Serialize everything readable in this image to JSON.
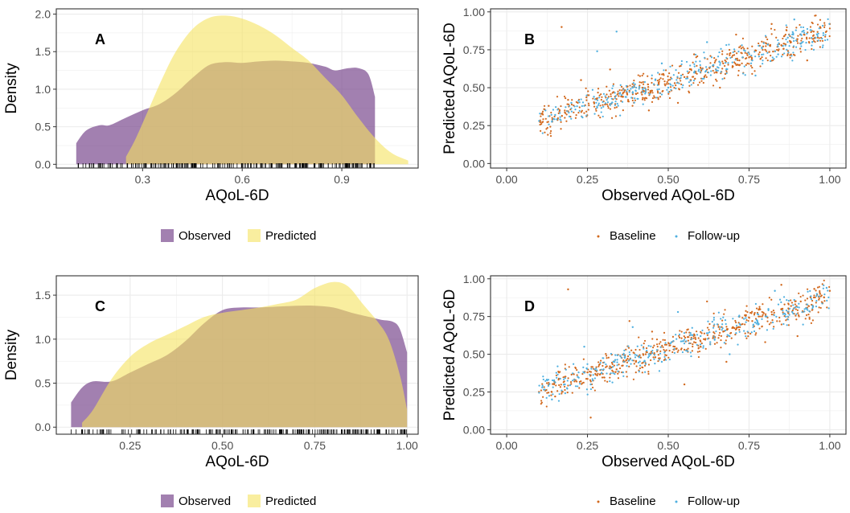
{
  "colors": {
    "observed_fill": "#7b4a8f",
    "predicted_fill": "#f5e35f",
    "baseline_point": "#d2691e",
    "followup_point": "#4fb0e0",
    "grid": "#ebebeb",
    "panel_border": "#333333"
  },
  "chart_data": [
    {
      "panel": "A",
      "type": "area",
      "xlabel": "AQoL-6D",
      "ylabel": "Density",
      "xlim": [
        0.04,
        1.13
      ],
      "ylim": [
        -0.05,
        2.07
      ],
      "xticks": [
        {
          "v": 0.3,
          "label": "0.3"
        },
        {
          "v": 0.6,
          "label": "0.6"
        },
        {
          "v": 0.9,
          "label": "0.9"
        }
      ],
      "yticks": [
        {
          "v": 0.0,
          "label": "0.0"
        },
        {
          "v": 0.5,
          "label": "0.5"
        },
        {
          "v": 1.0,
          "label": "1.0"
        },
        {
          "v": 1.5,
          "label": "1.5"
        },
        {
          "v": 2.0,
          "label": "2.0"
        }
      ],
      "grid": true,
      "legend_position": "bottom",
      "series": [
        {
          "name": "Observed",
          "x": [
            0.1,
            0.13,
            0.17,
            0.2,
            0.25,
            0.3,
            0.35,
            0.4,
            0.45,
            0.5,
            0.55,
            0.6,
            0.65,
            0.7,
            0.75,
            0.8,
            0.85,
            0.88,
            0.92,
            0.95,
            0.98,
            1.0
          ],
          "y": [
            0.28,
            0.45,
            0.52,
            0.52,
            0.62,
            0.72,
            0.8,
            0.95,
            1.15,
            1.32,
            1.36,
            1.35,
            1.37,
            1.38,
            1.37,
            1.35,
            1.3,
            1.25,
            1.28,
            1.28,
            1.2,
            0.9
          ]
        },
        {
          "name": "Predicted",
          "x": [
            0.25,
            0.28,
            0.32,
            0.36,
            0.4,
            0.45,
            0.5,
            0.55,
            0.6,
            0.65,
            0.7,
            0.75,
            0.8,
            0.85,
            0.9,
            0.95,
            1.0,
            1.05,
            1.1
          ],
          "y": [
            0.1,
            0.35,
            0.75,
            1.15,
            1.5,
            1.8,
            1.95,
            1.98,
            1.94,
            1.85,
            1.72,
            1.55,
            1.38,
            1.15,
            0.92,
            0.62,
            0.35,
            0.15,
            0.05
          ]
        }
      ]
    },
    {
      "panel": "B",
      "type": "scatter",
      "xlabel": "Observed AQoL-6D",
      "ylabel": "Predicted AQoL-6D",
      "xlim": [
        -0.05,
        1.05
      ],
      "ylim": [
        -0.03,
        1.02
      ],
      "xticks": [
        {
          "v": 0.0,
          "label": "0.00"
        },
        {
          "v": 0.25,
          "label": "0.25"
        },
        {
          "v": 0.5,
          "label": "0.50"
        },
        {
          "v": 0.75,
          "label": "0.75"
        },
        {
          "v": 1.0,
          "label": "1.00"
        }
      ],
      "yticks": [
        {
          "v": 0.0,
          "label": "0.00"
        },
        {
          "v": 0.25,
          "label": "0.25"
        },
        {
          "v": 0.5,
          "label": "0.50"
        },
        {
          "v": 0.75,
          "label": "0.75"
        },
        {
          "v": 1.0,
          "label": "1.00"
        }
      ],
      "grid": true,
      "legend_position": "bottom",
      "series": [
        {
          "name": "Baseline",
          "x": [
            0.11,
            0.13,
            0.16,
            0.19,
            0.22,
            0.25,
            0.28,
            0.3,
            0.33,
            0.36,
            0.38,
            0.4,
            0.42,
            0.45,
            0.47,
            0.5,
            0.52,
            0.55,
            0.57,
            0.6,
            0.62,
            0.65,
            0.67,
            0.7,
            0.72,
            0.75,
            0.78,
            0.8,
            0.83,
            0.85,
            0.88,
            0.9,
            0.92,
            0.95,
            0.97,
            1.0,
            0.23,
            0.32,
            0.44,
            0.58,
            0.66,
            0.82,
            0.93,
            0.17,
            0.53,
            0.71
          ],
          "y": [
            0.33,
            0.38,
            0.36,
            0.42,
            0.4,
            0.45,
            0.43,
            0.41,
            0.47,
            0.44,
            0.48,
            0.46,
            0.5,
            0.48,
            0.52,
            0.55,
            0.53,
            0.57,
            0.55,
            0.6,
            0.62,
            0.6,
            0.66,
            0.64,
            0.68,
            0.7,
            0.72,
            0.75,
            0.74,
            0.78,
            0.8,
            0.82,
            0.85,
            0.87,
            0.9,
            0.92,
            0.55,
            0.62,
            0.35,
            0.72,
            0.5,
            0.92,
            0.68,
            0.9,
            0.4,
            0.85
          ]
        },
        {
          "name": "Follow-up",
          "x": [
            0.12,
            0.15,
            0.2,
            0.24,
            0.27,
            0.31,
            0.35,
            0.39,
            0.43,
            0.46,
            0.5,
            0.54,
            0.58,
            0.61,
            0.64,
            0.68,
            0.73,
            0.76,
            0.79,
            0.84,
            0.87,
            0.91,
            0.94,
            0.98,
            0.34,
            0.48,
            0.62,
            0.77,
            0.89,
            0.28
          ],
          "y": [
            0.35,
            0.32,
            0.4,
            0.38,
            0.44,
            0.42,
            0.46,
            0.5,
            0.47,
            0.55,
            0.5,
            0.58,
            0.6,
            0.56,
            0.65,
            0.62,
            0.7,
            0.68,
            0.76,
            0.72,
            0.83,
            0.79,
            0.88,
            0.86,
            0.87,
            0.66,
            0.8,
            0.58,
            0.95,
            0.74
          ]
        }
      ]
    },
    {
      "panel": "C",
      "type": "area",
      "xlabel": "AQoL-6D",
      "ylabel": "Density",
      "xlim": [
        0.05,
        1.03
      ],
      "ylim": [
        -0.08,
        1.72
      ],
      "xticks": [
        {
          "v": 0.25,
          "label": "0.25"
        },
        {
          "v": 0.5,
          "label": "0.50"
        },
        {
          "v": 0.75,
          "label": "0.75"
        },
        {
          "v": 1.0,
          "label": "1.00"
        }
      ],
      "yticks": [
        {
          "v": 0.0,
          "label": "0.0"
        },
        {
          "v": 0.5,
          "label": "0.5"
        },
        {
          "v": 1.0,
          "label": "1.0"
        },
        {
          "v": 1.5,
          "label": "1.5"
        }
      ],
      "grid": true,
      "legend_position": "bottom",
      "series": [
        {
          "name": "Observed",
          "x": [
            0.09,
            0.12,
            0.15,
            0.2,
            0.25,
            0.3,
            0.35,
            0.4,
            0.45,
            0.5,
            0.55,
            0.6,
            0.65,
            0.7,
            0.75,
            0.8,
            0.85,
            0.9,
            0.93,
            0.96,
            0.98,
            1.0
          ],
          "y": [
            0.28,
            0.45,
            0.52,
            0.52,
            0.62,
            0.72,
            0.82,
            0.98,
            1.18,
            1.33,
            1.36,
            1.36,
            1.37,
            1.38,
            1.38,
            1.36,
            1.3,
            1.25,
            1.22,
            1.2,
            1.12,
            0.85
          ]
        },
        {
          "name": "Predicted",
          "x": [
            0.12,
            0.15,
            0.2,
            0.25,
            0.3,
            0.35,
            0.4,
            0.45,
            0.5,
            0.55,
            0.6,
            0.65,
            0.7,
            0.75,
            0.8,
            0.84,
            0.88,
            0.92,
            0.95,
            0.98,
            1.0
          ],
          "y": [
            0.05,
            0.2,
            0.55,
            0.8,
            0.95,
            1.05,
            1.15,
            1.25,
            1.3,
            1.33,
            1.36,
            1.4,
            1.45,
            1.58,
            1.65,
            1.6,
            1.4,
            1.2,
            1.0,
            0.6,
            0.2
          ]
        }
      ]
    },
    {
      "panel": "D",
      "type": "scatter",
      "xlabel": "Observed AQoL-6D",
      "ylabel": "Predicted AQoL-6D",
      "xlim": [
        -0.05,
        1.05
      ],
      "ylim": [
        -0.03,
        1.02
      ],
      "xticks": [
        {
          "v": 0.0,
          "label": "0.00"
        },
        {
          "v": 0.25,
          "label": "0.25"
        },
        {
          "v": 0.5,
          "label": "0.50"
        },
        {
          "v": 0.75,
          "label": "0.75"
        },
        {
          "v": 1.0,
          "label": "1.00"
        }
      ],
      "yticks": [
        {
          "v": 0.0,
          "label": "0.00"
        },
        {
          "v": 0.25,
          "label": "0.25"
        },
        {
          "v": 0.5,
          "label": "0.50"
        },
        {
          "v": 0.75,
          "label": "0.75"
        },
        {
          "v": 1.0,
          "label": "1.00"
        }
      ],
      "grid": true,
      "legend_position": "bottom",
      "series": [
        {
          "name": "Baseline",
          "x": [
            0.1,
            0.13,
            0.15,
            0.18,
            0.21,
            0.25,
            0.28,
            0.31,
            0.34,
            0.37,
            0.4,
            0.43,
            0.46,
            0.49,
            0.52,
            0.55,
            0.58,
            0.61,
            0.64,
            0.67,
            0.7,
            0.73,
            0.76,
            0.79,
            0.82,
            0.85,
            0.88,
            0.91,
            0.94,
            0.97,
            1.0,
            0.19,
            0.26,
            0.38,
            0.55,
            0.68,
            0.8,
            0.9,
            0.45,
            0.62,
            0.85
          ],
          "y": [
            0.25,
            0.3,
            0.22,
            0.35,
            0.32,
            0.38,
            0.36,
            0.42,
            0.4,
            0.46,
            0.45,
            0.5,
            0.48,
            0.52,
            0.55,
            0.53,
            0.58,
            0.6,
            0.62,
            0.65,
            0.68,
            0.7,
            0.72,
            0.75,
            0.78,
            0.8,
            0.82,
            0.85,
            0.88,
            0.9,
            0.92,
            0.93,
            0.08,
            0.72,
            0.3,
            0.45,
            0.58,
            0.62,
            0.65,
            0.85,
            0.96
          ]
        },
        {
          "name": "Follow-up",
          "x": [
            0.11,
            0.14,
            0.18,
            0.22,
            0.26,
            0.3,
            0.33,
            0.36,
            0.41,
            0.44,
            0.48,
            0.51,
            0.56,
            0.6,
            0.63,
            0.66,
            0.71,
            0.74,
            0.78,
            0.81,
            0.86,
            0.89,
            0.93,
            0.96,
            0.99,
            0.24,
            0.39,
            0.53,
            0.69,
            0.83
          ],
          "y": [
            0.28,
            0.2,
            0.3,
            0.35,
            0.3,
            0.4,
            0.45,
            0.38,
            0.48,
            0.5,
            0.45,
            0.58,
            0.52,
            0.62,
            0.58,
            0.68,
            0.64,
            0.74,
            0.7,
            0.8,
            0.77,
            0.86,
            0.83,
            0.9,
            0.94,
            0.55,
            0.68,
            0.78,
            0.5,
            0.92
          ]
        }
      ]
    }
  ],
  "legends": {
    "density": [
      "Observed",
      "Predicted"
    ],
    "scatter": [
      "Baseline",
      "Follow-up"
    ]
  }
}
